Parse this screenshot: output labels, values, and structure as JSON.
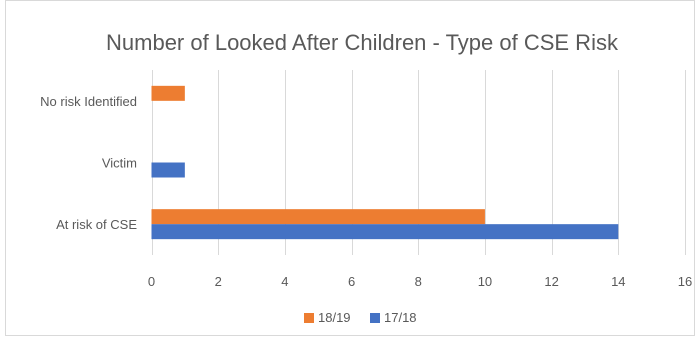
{
  "chart_data": {
    "type": "bar",
    "orientation": "horizontal",
    "title": "Number of Looked After Children - Type of CSE Risk",
    "categories": [
      "No risk Identified",
      "Victim",
      "At risk of CSE"
    ],
    "series": [
      {
        "name": "18/19",
        "color": "#ED7D31",
        "values": [
          1,
          0,
          10
        ]
      },
      {
        "name": "17/18",
        "color": "#4472C4",
        "values": [
          0,
          1,
          14
        ]
      }
    ],
    "xlim": [
      0,
      16
    ],
    "xticks": [
      0,
      2,
      4,
      6,
      8,
      10,
      12,
      14,
      16
    ],
    "grid": true,
    "legend_position": "bottom"
  }
}
